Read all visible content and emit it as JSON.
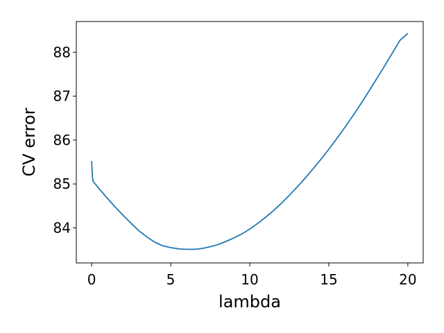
{
  "chart_data": {
    "type": "line",
    "title": "",
    "xlabel": "lambda",
    "ylabel": "CV error",
    "xlim": [
      -0.97,
      20.97
    ],
    "ylim": [
      83.2,
      88.7
    ],
    "xticks": [
      0,
      5,
      10,
      15,
      20
    ],
    "yticks": [
      84,
      85,
      86,
      87,
      88
    ],
    "grid": false,
    "legend": "none",
    "series": [
      {
        "color": "#1f77b4",
        "x": [
          0,
          0.05,
          0.1,
          0.2,
          0.5,
          1,
          1.5,
          2,
          2.5,
          3,
          3.5,
          4,
          4.5,
          5,
          5.5,
          6,
          6.5,
          7,
          7.5,
          8,
          8.5,
          9,
          9.5,
          10,
          10.5,
          11,
          11.5,
          12,
          12.5,
          13,
          13.5,
          14,
          14.5,
          15,
          15.5,
          16,
          16.5,
          17,
          17.5,
          18,
          18.5,
          19,
          19.5,
          20
        ],
        "y": [
          85.52,
          85.15,
          85.06,
          85.01,
          84.88,
          84.67,
          84.47,
          84.28,
          84.1,
          83.93,
          83.79,
          83.67,
          83.59,
          83.55,
          83.52,
          83.51,
          83.51,
          83.53,
          83.57,
          83.62,
          83.69,
          83.77,
          83.86,
          83.97,
          84.1,
          84.24,
          84.39,
          84.56,
          84.74,
          84.93,
          85.13,
          85.34,
          85.56,
          85.79,
          86.03,
          86.28,
          86.54,
          86.81,
          87.09,
          87.38,
          87.67,
          87.97,
          88.27,
          88.43
        ]
      }
    ]
  }
}
